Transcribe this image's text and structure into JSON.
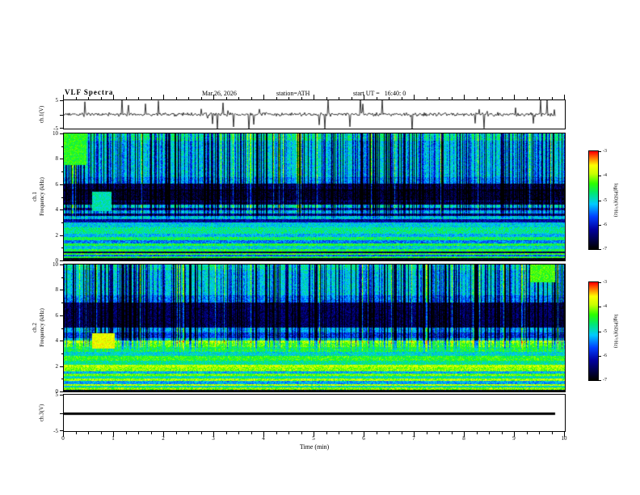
{
  "header": {
    "title": "VLF Spectra",
    "date": "Mar.26, 2026",
    "station": "station=ATH",
    "start_ut": "start UT =   16:40: 0"
  },
  "x_axis": {
    "label": "Time (min)",
    "lim": [
      0,
      10
    ],
    "ticks": [
      0,
      1,
      2,
      3,
      4,
      5,
      6,
      7,
      8,
      9,
      10
    ],
    "minor_tick_step_min": 0.25,
    "data_end_min": 9.8
  },
  "colorbar": {
    "label": "log(PSD)(V²/Hz)",
    "ticks": [
      -3,
      -4,
      -5,
      -6,
      -7
    ],
    "lim": [
      -7,
      -3
    ],
    "colormap": [
      [
        0.0,
        "#000000"
      ],
      [
        0.08,
        "#000040"
      ],
      [
        0.2,
        "#0000a0"
      ],
      [
        0.33,
        "#0040ff"
      ],
      [
        0.46,
        "#00ccff"
      ],
      [
        0.57,
        "#00e878"
      ],
      [
        0.67,
        "#2bff00"
      ],
      [
        0.77,
        "#c8ff00"
      ],
      [
        0.86,
        "#ffff00"
      ],
      [
        0.93,
        "#ff8000"
      ],
      [
        1.0,
        "#ff0000"
      ]
    ]
  },
  "chart_data": [
    {
      "type": "line",
      "name": "ch1-voltage",
      "ylabel": "ch.1(V)",
      "ylim": [
        -5,
        5
      ],
      "ytick_marks": [
        5,
        0,
        -5
      ],
      "ytick_labels": [
        5,
        -5
      ],
      "noise_v": 0.45,
      "spike_prob": 0.055,
      "spike_vmax": 5.5,
      "t_end_min": 9.8,
      "description": "Broadband VLF voltage time series: low-amplitude noise near 0 V with frequent impulsive sferic spikes reaching about ±5 V over 0–9.8 min"
    },
    {
      "type": "heatmap",
      "name": "ch1-spectrogram",
      "ylabel": "ch.1 Frequency (kHz)",
      "ylabel_line1": "ch.1",
      "ylabel_line2": "Frequency (kHz)",
      "ylim": [
        0,
        10
      ],
      "yticks": [
        0,
        2,
        4,
        6,
        8,
        10
      ],
      "zlim": [
        -7,
        -3
      ],
      "noise": 0.8,
      "bands": [
        [
          0.0,
          0.18,
          -7.0
        ],
        [
          0.18,
          0.32,
          -4.5
        ],
        [
          0.32,
          0.45,
          -5.6
        ],
        [
          0.45,
          0.58,
          -4.4
        ],
        [
          0.58,
          0.72,
          -6.6
        ],
        [
          0.72,
          0.92,
          -4.5
        ],
        [
          0.92,
          1.12,
          -5.1
        ],
        [
          1.12,
          1.32,
          -4.5
        ],
        [
          1.32,
          1.58,
          -5.5
        ],
        [
          1.58,
          1.82,
          -4.6
        ],
        [
          1.82,
          2.12,
          -5.2
        ],
        [
          2.12,
          2.62,
          -4.8
        ],
        [
          2.62,
          3.02,
          -5.1
        ],
        [
          3.02,
          3.22,
          -6.2
        ],
        [
          3.22,
          3.48,
          -5.0
        ],
        [
          3.48,
          3.68,
          -6.3
        ],
        [
          3.68,
          3.92,
          -5.1
        ],
        [
          3.92,
          4.12,
          -6.1
        ],
        [
          4.12,
          4.38,
          -4.9
        ],
        [
          4.38,
          4.62,
          -6.6
        ],
        [
          4.62,
          4.74,
          -6.1
        ],
        [
          4.74,
          5.48,
          -6.7
        ],
        [
          5.48,
          5.62,
          -6.9
        ],
        [
          5.62,
          6.02,
          -6.5
        ],
        [
          6.02,
          6.55,
          -5.3
        ],
        [
          6.55,
          9.4,
          -5.05
        ],
        [
          9.4,
          10.01,
          -4.7
        ]
      ],
      "events": [
        {
          "t0": 0.55,
          "t1": 0.95,
          "f0": 3.9,
          "f1": 5.4,
          "psd": -4.9
        },
        {
          "t0": 0.0,
          "t1": 0.45,
          "f0": 7.5,
          "f1": 10.0,
          "psd": -4.4
        }
      ],
      "streaks": {
        "fraction": 0.52,
        "max_depth": 2.5,
        "f_onset": 3.0,
        "bright_prob": 0.07,
        "bright_boost": 0.9
      },
      "description": "VLF spectrogram ch.1: green background ~-5, dark-blue quiet band 4.4–6 kHz, layered horizontal emission bands below 3 kHz, dense vertical dark sferic streaks above ~3 kHz, black band below 0.2 kHz"
    },
    {
      "type": "heatmap",
      "name": "ch2-spectrogram",
      "ylabel": "ch.2 Frequency (kHz)",
      "ylabel_line1": "ch.2",
      "ylabel_line2": "Frequency (kHz)",
      "ylim": [
        0,
        10
      ],
      "yticks": [
        0,
        2,
        4,
        6,
        8,
        10
      ],
      "zlim": [
        -7,
        -3
      ],
      "noise": 0.8,
      "bands": [
        [
          0.0,
          0.15,
          -7.0
        ],
        [
          0.15,
          0.3,
          -4.1
        ],
        [
          0.3,
          0.44,
          -5.0
        ],
        [
          0.44,
          0.6,
          -3.9
        ],
        [
          0.6,
          0.8,
          -5.3
        ],
        [
          0.8,
          1.0,
          -4.0
        ],
        [
          1.0,
          1.2,
          -4.9
        ],
        [
          1.2,
          1.42,
          -4.2
        ],
        [
          1.42,
          1.62,
          -5.2
        ],
        [
          1.62,
          1.88,
          -4.1
        ],
        [
          1.88,
          2.1,
          -3.9
        ],
        [
          2.1,
          2.42,
          -4.8
        ],
        [
          2.42,
          2.82,
          -4.4
        ],
        [
          2.82,
          3.12,
          -5.0
        ],
        [
          3.12,
          3.52,
          -4.5
        ],
        [
          3.52,
          3.8,
          -4.2
        ],
        [
          3.8,
          4.02,
          -3.9
        ],
        [
          4.02,
          4.22,
          -5.0
        ],
        [
          4.22,
          4.62,
          -5.7
        ],
        [
          4.62,
          5.02,
          -5.2
        ],
        [
          5.02,
          6.98,
          -6.5
        ],
        [
          6.98,
          7.58,
          -5.4
        ],
        [
          7.58,
          9.55,
          -5.05
        ],
        [
          9.55,
          10.01,
          -4.8
        ]
      ],
      "events": [
        {
          "t0": 0.55,
          "t1": 1.0,
          "f0": 3.4,
          "f1": 4.6,
          "psd": -3.7
        },
        {
          "t0": 9.3,
          "t1": 9.8,
          "f0": 8.6,
          "f1": 10.0,
          "psd": -4.3
        }
      ],
      "streaks": {
        "fraction": 0.52,
        "max_depth": 2.5,
        "f_onset": 3.0,
        "bright_prob": 0.07,
        "bright_boost": 0.9
      },
      "description": "VLF spectrogram ch.2: strong yellow/orange horizontal emission bands below ~4 kHz, bright line near 3.8–4 kHz, dark-blue quiet band 5–7 kHz, vertical sferic streaks above ~3 kHz, yellow burst near t=0.8 min at 4 kHz"
    },
    {
      "type": "line",
      "name": "ch3-voltage",
      "ylabel": "ch.3(V)",
      "ylim": [
        -5,
        5
      ],
      "ytick_marks": [
        5,
        0,
        -5
      ],
      "ytick_labels": [
        5,
        -5
      ],
      "value_v": 0,
      "t_end_min": 9.8,
      "description": "Constant 0 V thick flat trace (inactive channel)"
    }
  ]
}
